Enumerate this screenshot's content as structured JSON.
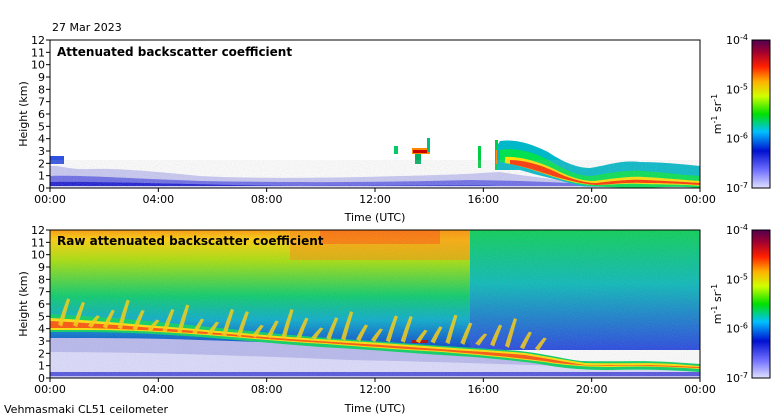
{
  "date_label": "27 Mar 2023",
  "instrument_label": "Vehmasmaki CL51 ceilometer",
  "colorbar": {
    "unit_main": "m",
    "unit_sup1": "-1",
    "unit_mid": " sr",
    "unit_sup2": "-1",
    "ticks": [
      {
        "base": "10",
        "exp": "-4"
      },
      {
        "base": "10",
        "exp": "-5"
      },
      {
        "base": "10",
        "exp": "-6"
      },
      {
        "base": "10",
        "exp": "-7"
      }
    ],
    "colors": [
      "#d8d8ff",
      "#8080ff",
      "#0000cc",
      "#00ffff",
      "#00ff00",
      "#ffff00",
      "#ff8000",
      "#ff0000",
      "#800000",
      "#400040"
    ]
  },
  "chart_data": [
    {
      "type": "heatmap",
      "title": "Attenuated backscatter coefficient",
      "xlabel": "Time (UTC)",
      "ylabel": "Height (km)",
      "xlim": [
        "00:00",
        "00:00"
      ],
      "ylim": [
        0,
        12
      ],
      "xticks": [
        "00:00",
        "04:00",
        "08:00",
        "12:00",
        "16:00",
        "20:00",
        "00:00"
      ],
      "yticks": [
        "0",
        "1",
        "2",
        "3",
        "4",
        "5",
        "6",
        "7",
        "8",
        "9",
        "10",
        "11",
        "12"
      ],
      "color_scale": "log",
      "color_range": [
        1e-07,
        0.0001
      ],
      "cloud_layer_top_km": [
        [
          16.5,
          3.6
        ],
        [
          17.0,
          3.4
        ],
        [
          18.0,
          2.9
        ],
        [
          18.6,
          2.6
        ],
        [
          19.2,
          1.8
        ],
        [
          20.0,
          1.2
        ],
        [
          20.5,
          0.9
        ],
        [
          21.2,
          1.4
        ],
        [
          22.0,
          1.7
        ],
        [
          23.0,
          1.2
        ],
        [
          24.0,
          0.7
        ]
      ]
    },
    {
      "type": "heatmap",
      "title": "Raw attenuated backscatter coefficient",
      "xlabel": "Time (UTC)",
      "ylabel": "Height (km)",
      "xlim": [
        "00:00",
        "00:00"
      ],
      "ylim": [
        0,
        12
      ],
      "xticks": [
        "00:00",
        "04:00",
        "08:00",
        "12:00",
        "16:00",
        "20:00",
        "00:00"
      ],
      "yticks": [
        "0",
        "1",
        "2",
        "3",
        "4",
        "5",
        "6",
        "7",
        "8",
        "9",
        "10",
        "11",
        "12"
      ],
      "color_scale": "log",
      "color_range": [
        1e-07,
        0.0001
      ],
      "cloud_layer_km": [
        [
          0,
          4.2
        ],
        [
          2,
          4.0
        ],
        [
          4,
          3.7
        ],
        [
          6,
          3.4
        ],
        [
          8,
          3.2
        ],
        [
          10,
          3.1
        ],
        [
          12,
          2.9
        ],
        [
          14,
          2.8
        ],
        [
          16,
          2.6
        ],
        [
          18,
          2.2
        ],
        [
          20,
          1.3
        ],
        [
          22,
          1.5
        ],
        [
          24,
          0.7
        ]
      ]
    }
  ]
}
